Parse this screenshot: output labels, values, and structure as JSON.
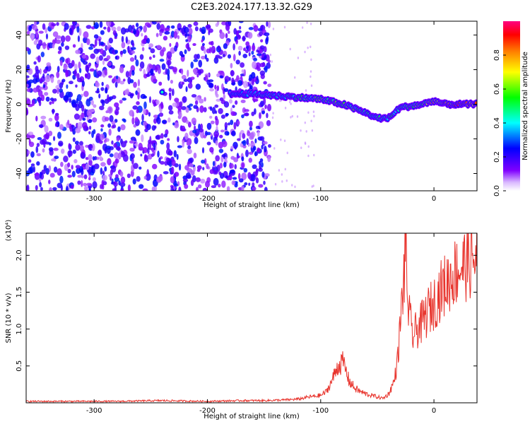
{
  "figure_title": "C2E3.2024.177.13.32.G29",
  "chart_data": [
    {
      "type": "heatmap",
      "title": "C2E3.2024.177.13.32.G29",
      "xlabel": "Height of straight line (km)",
      "ylabel": "Frequency (Hz)",
      "xlim": [
        -360,
        38
      ],
      "ylim": [
        -50,
        48
      ],
      "x_ticks": [
        -300,
        -200,
        -100,
        0
      ],
      "y_ticks": [
        -40,
        -20,
        0,
        20,
        40
      ],
      "colorbar": {
        "label": "Normalized spectral amplitude",
        "range": [
          0,
          1
        ],
        "ticks": [
          0.0,
          0.2,
          0.4,
          0.6,
          0.8
        ],
        "colors": [
          "#ffffff",
          "#8000ff",
          "#0000ff",
          "#00ffff",
          "#00ff00",
          "#ffff00",
          "#ff8000",
          "#ff0000",
          "#ff0080"
        ]
      },
      "noise_region_x": [
        -360,
        -145
      ],
      "ridge": {
        "x": [
          -240,
          -180,
          -160,
          -140,
          -120,
          -100,
          -80,
          -60,
          -50,
          -40,
          -30,
          -20,
          -10,
          0,
          10,
          20,
          38
        ],
        "y": [
          7,
          6,
          6,
          5,
          4,
          3,
          0,
          -5,
          -8,
          -8,
          -2,
          -1,
          0,
          2,
          0,
          0,
          0
        ],
        "amplitude": [
          0.3,
          0.35,
          0.4,
          0.45,
          0.5,
          0.55,
          0.55,
          0.5,
          0.45,
          0.5,
          0.5,
          0.55,
          0.6,
          0.7,
          0.8,
          0.85,
          0.9
        ]
      },
      "grid": false
    },
    {
      "type": "line",
      "xlabel": "Height of straight line (km)",
      "ylabel": "SNR (10 * v/v)",
      "y_multiplier": "(x10⁴)",
      "xlim": [
        -360,
        38
      ],
      "ylim": [
        0,
        2.3
      ],
      "x_ticks": [
        -300,
        -200,
        -100,
        0
      ],
      "y_ticks": [
        0.5,
        1.0,
        1.5,
        2.0
      ],
      "series_color": "#e8332c",
      "x": [
        -360,
        -320,
        -280,
        -240,
        -200,
        -170,
        -150,
        -130,
        -120,
        -110,
        -100,
        -95,
        -90,
        -85,
        -80,
        -75,
        -70,
        -65,
        -60,
        -55,
        -50,
        -45,
        -40,
        -35,
        -32,
        -30,
        -28,
        -26,
        -25,
        -24,
        -22,
        -20,
        -18,
        -15,
        -10,
        -5,
        0,
        5,
        10,
        15,
        20,
        25,
        30,
        38
      ],
      "y": [
        0.02,
        0.02,
        0.02,
        0.03,
        0.02,
        0.03,
        0.03,
        0.04,
        0.05,
        0.08,
        0.1,
        0.15,
        0.3,
        0.5,
        0.55,
        0.3,
        0.2,
        0.15,
        0.12,
        0.1,
        0.08,
        0.06,
        0.12,
        0.3,
        0.6,
        1.0,
        1.4,
        1.8,
        2.3,
        1.6,
        1.2,
        1.0,
        0.9,
        1.0,
        1.1,
        1.25,
        1.35,
        1.5,
        1.6,
        1.7,
        1.8,
        1.85,
        1.9,
        1.95
      ],
      "grid": false
    }
  ]
}
